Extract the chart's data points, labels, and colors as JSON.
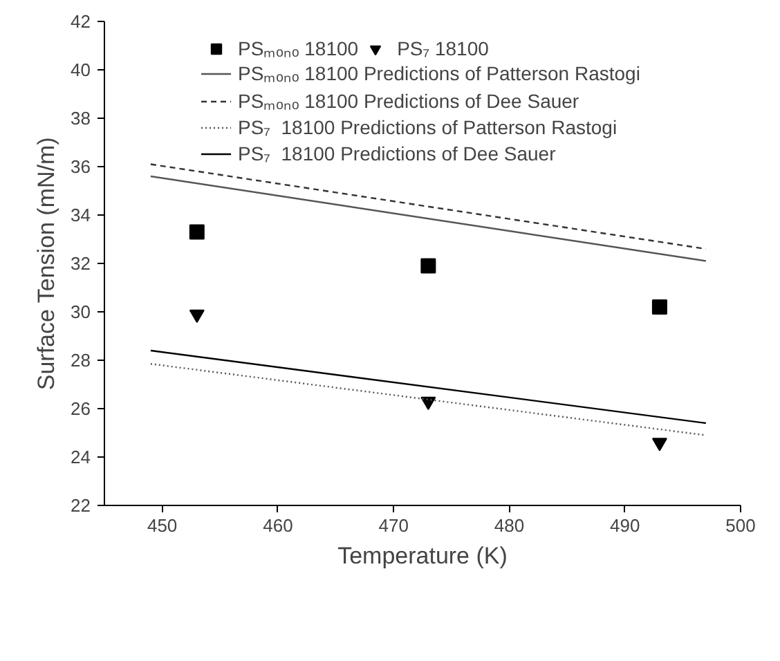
{
  "chart_data": {
    "type": "scatter",
    "xlabel": "Temperature (K)",
    "ylabel": "Surface Tension (mN/m)",
    "xlim": [
      445,
      500
    ],
    "xticks": [
      450,
      460,
      470,
      480,
      490,
      500
    ],
    "ylim": [
      22,
      42
    ],
    "yticks": [
      22,
      24,
      26,
      28,
      30,
      32,
      34,
      36,
      38,
      40,
      42
    ],
    "grid": false,
    "legend": "top right",
    "series": [
      {
        "name": "PSₘₒₙₒ 18100",
        "marker": "square",
        "color": "#000000",
        "x": [
          453,
          473,
          493
        ],
        "values": [
          33.3,
          31.9,
          30.2
        ]
      },
      {
        "name": "PS₇ 18100",
        "marker": "triangle",
        "color": "#000000",
        "x": [
          453,
          473,
          493
        ],
        "values": [
          29.9,
          26.3,
          24.6
        ]
      },
      {
        "name": "PSₘₒₙₒ 18100 Predictions of Patterson Rastogi",
        "type": "line",
        "line_style": "solid",
        "color": "#555555",
        "x": [
          449,
          497
        ],
        "values": [
          35.6,
          32.1
        ]
      },
      {
        "name": "PSₘₒₙₒ 18100 Predictions of Dee Sauer",
        "type": "line",
        "line_style": "dashed",
        "color": "#333333",
        "x": [
          449,
          497
        ],
        "values": [
          36.1,
          32.6
        ]
      },
      {
        "name": "PS₇  18100 Predictions of Patterson Rastogi",
        "type": "line",
        "line_style": "dotted",
        "color": "#555555",
        "x": [
          449,
          497
        ],
        "values": [
          27.85,
          24.9
        ]
      },
      {
        "name": "PS₇  18100 Predictions of Dee Sauer",
        "type": "line",
        "line_style": "solid",
        "color": "#000000",
        "x": [
          449,
          497
        ],
        "values": [
          28.4,
          25.4
        ]
      }
    ]
  }
}
